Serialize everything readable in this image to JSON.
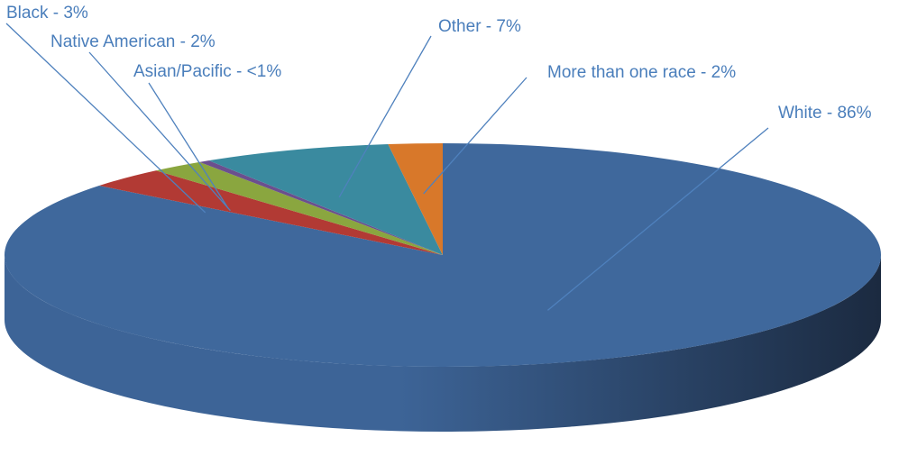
{
  "chart_data": {
    "type": "pie",
    "three_d": true,
    "title": "",
    "label_color": "#4a7ebb",
    "leader_color": "#4f81bd",
    "slices": [
      {
        "category": "White",
        "value": 86,
        "label": "White - 86%",
        "color": "#3f689c",
        "side_dark": "#1b2a40",
        "side_light": "#3d6497"
      },
      {
        "category": "Black",
        "value": 3,
        "label": "Black - 3%",
        "color": "#b23a34"
      },
      {
        "category": "Native American",
        "value": 2,
        "label": "Native American - 2%",
        "color": "#8aa63f"
      },
      {
        "category": "Asian/Pacific",
        "value": 0.4,
        "label": "Asian/Pacific - <1%",
        "color": "#6b4f8e"
      },
      {
        "category": "Other",
        "value": 7,
        "label": "Other - 7%",
        "color": "#3a8a9f"
      },
      {
        "category": "More than one race",
        "value": 2,
        "label": "More than one race - 2%",
        "color": "#d8782a"
      }
    ]
  }
}
